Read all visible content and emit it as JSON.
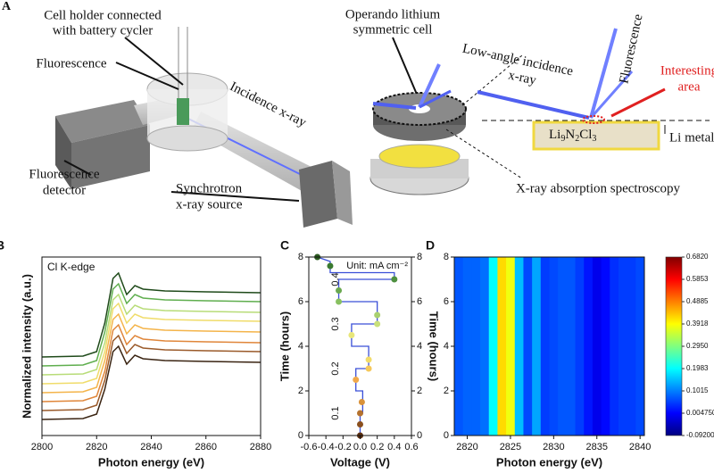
{
  "diagram": {
    "panel_label": "A",
    "cell_holder": [
      "Cell holder connected",
      "with battery cycler"
    ],
    "fluorescence_left": "Fluorescence",
    "operando_cell": [
      "Operando lithium",
      "symmetric cell"
    ],
    "incidence": "Incidence x-ray",
    "detector": [
      "Fluorescence",
      "detector"
    ],
    "source": [
      "Synchrotron",
      "x-ray source"
    ],
    "low_angle": [
      "Low-angle incidence",
      "x-ray"
    ],
    "fluorescence_right": "Fluorescence",
    "interesting": [
      "Interesting",
      "area"
    ],
    "compound": [
      "Li",
      "9",
      "N",
      "2",
      "Cl",
      "3"
    ],
    "li_metal": "Li metal",
    "caption": "X-ray absorption spectroscopy"
  },
  "chart_data": [
    {
      "type": "line",
      "panel_label": "B",
      "annotation": "Cl K-edge",
      "x_label": "Photon energy (eV)",
      "y_label": "Normalized intensity (a.u.)",
      "x": [
        2800,
        2815,
        2820,
        2823,
        2826,
        2828,
        2831,
        2834,
        2837,
        2845,
        2860,
        2880
      ],
      "xlim": [
        2800,
        2880
      ],
      "xticks": [
        2800,
        2820,
        2840,
        2860,
        2880
      ],
      "ylim": [
        0,
        10
      ],
      "series": [
        {
          "color": "#3a2412",
          "values": [
            0.9,
            0.95,
            1.2,
            2.6,
            4.7,
            5.0,
            4.0,
            4.5,
            4.3,
            4.2,
            4.15,
            4.1
          ]
        },
        {
          "color": "#9a5a2a",
          "values": [
            1.4,
            1.45,
            1.7,
            3.1,
            5.3,
            5.6,
            4.6,
            5.1,
            4.9,
            4.8,
            4.75,
            4.7
          ]
        },
        {
          "color": "#e0863a",
          "values": [
            1.9,
            1.95,
            2.2,
            3.6,
            5.9,
            6.2,
            5.1,
            5.6,
            5.4,
            5.3,
            5.25,
            5.2
          ]
        },
        {
          "color": "#f4b44a",
          "values": [
            2.4,
            2.45,
            2.7,
            4.2,
            6.5,
            6.8,
            5.7,
            6.2,
            6.0,
            5.9,
            5.85,
            5.8
          ]
        },
        {
          "color": "#f0dc6a",
          "values": [
            2.9,
            2.95,
            3.2,
            4.7,
            7.1,
            7.4,
            6.3,
            6.8,
            6.6,
            6.5,
            6.45,
            6.4
          ]
        },
        {
          "color": "#b8dc78",
          "values": [
            3.4,
            3.45,
            3.7,
            5.2,
            7.6,
            7.9,
            6.8,
            7.3,
            7.1,
            7.0,
            6.95,
            6.9
          ]
        },
        {
          "color": "#5fae4e",
          "values": [
            3.9,
            3.95,
            4.2,
            5.8,
            8.2,
            8.5,
            7.4,
            7.9,
            7.7,
            7.6,
            7.55,
            7.5
          ]
        },
        {
          "color": "#1f4a1a",
          "values": [
            4.4,
            4.45,
            4.7,
            6.3,
            8.8,
            9.1,
            7.9,
            8.4,
            8.2,
            8.1,
            8.05,
            8.0
          ]
        }
      ]
    },
    {
      "type": "step",
      "panel_label": "C",
      "annotation": "Unit: mA cm⁻²",
      "current_labels": [
        "0.1",
        "0.2",
        "0.3",
        "0.4"
      ],
      "current_label_y": [
        1,
        3,
        5,
        7
      ],
      "x_label": "Voltage (V)",
      "y_label": "Time (hours)",
      "y2_label": "Time (hours)",
      "xlim": [
        -0.6,
        0.6
      ],
      "xticks": [
        -0.6,
        -0.4,
        -0.2,
        {
          "value": 0,
          "label": "0.0"
        },
        0.2,
        0.4,
        0.6
      ],
      "ylim": [
        0,
        8
      ],
      "yticks": [
        0,
        2,
        4,
        6,
        8
      ],
      "y2lim": [
        0,
        8
      ],
      "y2ticks": [
        0,
        2,
        4,
        6,
        8
      ],
      "line": {
        "color": "#3a4fd8",
        "x": [
          0,
          0,
          0.03,
          0.03,
          -0.05,
          -0.05,
          0.1,
          0.1,
          -0.1,
          -0.1,
          0.2,
          0.2,
          -0.25,
          -0.25,
          0.4,
          0.4,
          -0.35,
          -0.35,
          -0.5
        ],
        "y": [
          0,
          1,
          1,
          2,
          2,
          3,
          3,
          4,
          4,
          5,
          5,
          6,
          6,
          7,
          7,
          7.3,
          7.3,
          7.8,
          8
        ]
      },
      "points": {
        "x": [
          0,
          0,
          0,
          0.02,
          -0.05,
          0.1,
          0.1,
          -0.1,
          0.2,
          0.2,
          -0.25,
          -0.25,
          0.4,
          -0.35,
          -0.5
        ],
        "y": [
          0,
          0.5,
          1,
          1.5,
          2.5,
          3,
          3.4,
          4.5,
          5,
          5.4,
          6,
          6.5,
          7,
          7.6,
          8
        ],
        "colors": [
          "#5c2e0e",
          "#8a4f1e",
          "#b5722e",
          "#d9923a",
          "#f0a84a",
          "#f5c85a",
          "#f2dc6a",
          "#e8e67a",
          "#c8e07a",
          "#a8d070",
          "#88c060",
          "#6aa850",
          "#4e9040",
          "#3a7a30",
          "#2a5a20"
        ]
      }
    },
    {
      "type": "heatmap",
      "panel_label": "D",
      "x_label": "Photon energy (eV)",
      "x": [
        2819,
        2820,
        2821,
        2822,
        2823,
        2824,
        2825,
        2826,
        2827,
        2828,
        2829,
        2830,
        2831,
        2832,
        2833,
        2834,
        2835,
        2836,
        2837,
        2838,
        2839,
        2840
      ],
      "values": [
        0.07,
        0.08,
        0.08,
        0.09,
        0.2,
        0.42,
        0.38,
        0.15,
        0.06,
        0.13,
        0.05,
        0.06,
        0.07,
        0.07,
        0.05,
        0.02,
        -0.01,
        0.01,
        0.04,
        0.05,
        0.05,
        0.06
      ],
      "xlim": [
        2818.5,
        2840.5
      ],
      "xticks": [
        2820,
        2825,
        2830,
        2835,
        2840
      ],
      "ylim": [
        0,
        8
      ],
      "yticks": [
        0,
        2,
        4,
        6,
        8
      ],
      "colormap": "jet",
      "clim": [
        -0.092,
        0.682
      ],
      "cticks": [
        {
          "value": -0.092,
          "label": "-0.09200"
        },
        {
          "value": 0.00475,
          "label": "0.004750"
        },
        0.1015,
        0.1983,
        {
          "value": 0.295,
          "label": "0.2950"
        },
        0.3918,
        0.4885,
        0.5853,
        {
          "value": 0.682,
          "label": "0.6820"
        }
      ]
    }
  ]
}
